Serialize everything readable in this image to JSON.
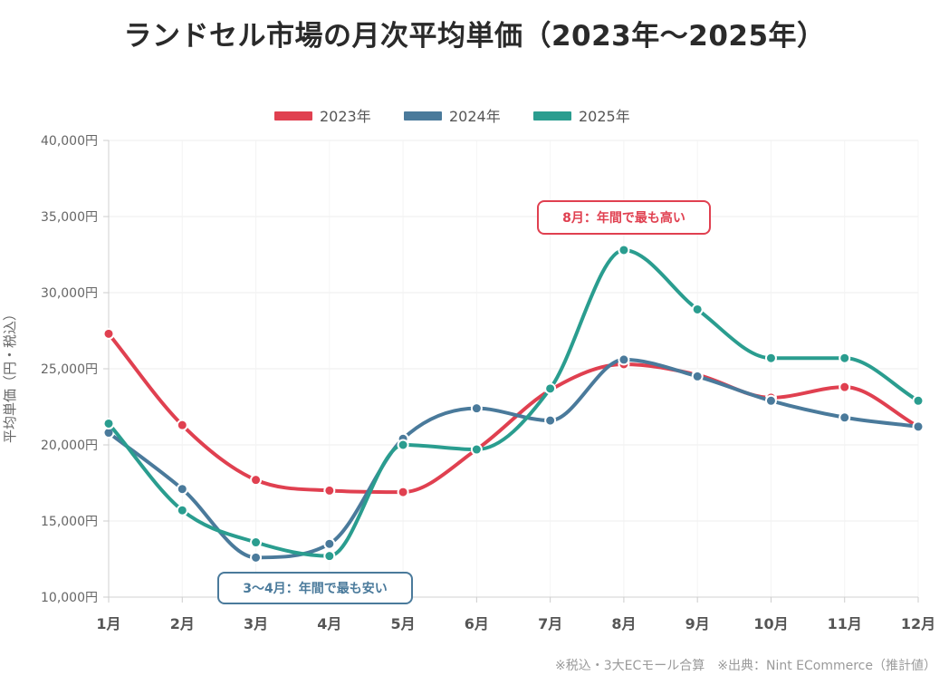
{
  "title": "ランドセル市場の月次平均単価（2023年〜2025年）",
  "footnote": "※税込・3大ECモール合算　※出典：Nint ECommerce（推計値）",
  "chart_data": {
    "type": "line",
    "title": "ランドセル市場の月次平均単価（2023年〜2025年）",
    "ylabel": "平均単価（円・税込）",
    "xlabel": "",
    "categories": [
      "1月",
      "2月",
      "3月",
      "4月",
      "5月",
      "6月",
      "7月",
      "8月",
      "9月",
      "10月",
      "11月",
      "12月"
    ],
    "y_ticks": [
      "10,000円",
      "15,000円",
      "20,000円",
      "25,000円",
      "30,000円",
      "35,000円",
      "40,000円"
    ],
    "ylim": [
      10000,
      40000
    ],
    "grid": true,
    "legend_position": "top-center",
    "series": [
      {
        "name": "2023年",
        "color": "#e04050",
        "values": [
          27300,
          21300,
          17700,
          17000,
          16900,
          19700,
          23600,
          25300,
          24600,
          23100,
          23800,
          21200
        ]
      },
      {
        "name": "2024年",
        "color": "#4a7a9b",
        "values": [
          20800,
          17100,
          12600,
          13500,
          20400,
          22400,
          21600,
          25600,
          24500,
          22900,
          21800,
          21200
        ]
      },
      {
        "name": "2025年",
        "color": "#2a9d8f",
        "values": [
          21400,
          15700,
          13600,
          12700,
          20000,
          19700,
          23700,
          32800,
          28900,
          25700,
          25700,
          22900
        ]
      }
    ],
    "annotations": [
      {
        "text": "8月：年間で最も高い",
        "color": "#e04050"
      },
      {
        "text": "3〜4月：年間で最も安い",
        "color": "#4a7a9b"
      }
    ]
  }
}
